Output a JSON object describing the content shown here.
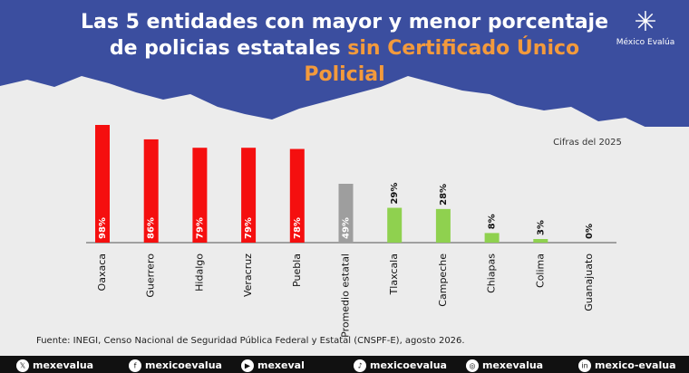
{
  "chart_data": {
    "type": "bar",
    "title": "Las 5 entidades con mayor y menor porcentaje de policias estatales",
    "title_highlight": "sin Certificado Único Policial",
    "brand": "México Evalúa",
    "annotation": "Cifras del 2025",
    "source": "Fuente: INEGI, Censo Nacional de Seguridad Pública Federal y Estatal (CNSPF-E), agosto 2026.",
    "categories": [
      "Oaxaca",
      "Guerrero",
      "Hidalgo",
      "Veracruz",
      "Puebla",
      "Promedio estatal",
      "Tlaxcala",
      "Campeche",
      "Chiapas",
      "Colima",
      "Guanajuato"
    ],
    "values": [
      98,
      86,
      79,
      79,
      78,
      49,
      29,
      28,
      8,
      3,
      0
    ],
    "value_labels": [
      "98%",
      "86%",
      "79%",
      "79%",
      "78%",
      "49%",
      "29%",
      "28%",
      "8%",
      "3%",
      "0%"
    ],
    "colors": [
      "#f50f0f",
      "#f50f0f",
      "#f50f0f",
      "#f50f0f",
      "#f50f0f",
      "#9e9e9e",
      "#8fd14f",
      "#8fd14f",
      "#8fd14f",
      "#8fd14f",
      "#8fd14f"
    ],
    "social": [
      "mexevalua",
      "mexicoevalua",
      "mexeval",
      "mexicoevalua",
      "mexevalua",
      "mexico-evalua"
    ]
  }
}
